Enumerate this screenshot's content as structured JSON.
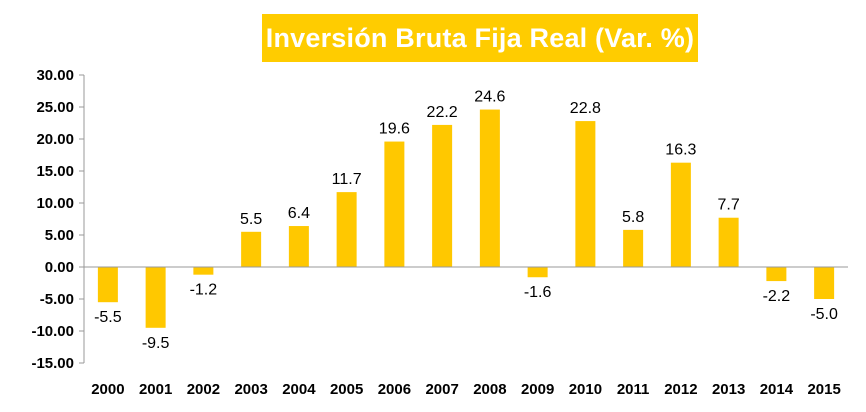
{
  "chart_data": {
    "type": "bar",
    "title": "Inversión Bruta Fija Real (Var. %)",
    "categories": [
      "2000",
      "2001",
      "2002",
      "2003",
      "2004",
      "2005",
      "2006",
      "2007",
      "2008",
      "2009",
      "2010",
      "2011",
      "2012",
      "2013",
      "2014",
      "2015"
    ],
    "values": [
      -5.5,
      -9.5,
      -1.2,
      5.5,
      6.4,
      11.7,
      19.6,
      22.2,
      24.6,
      -1.6,
      22.8,
      5.8,
      16.3,
      7.7,
      -2.2,
      -5.0
    ],
    "value_labels": [
      "-5.5",
      "-9.5",
      "-1.2",
      "5.5",
      "6.4",
      "11.7",
      "19.6",
      "22.2",
      "24.6",
      "-1.6",
      "22.8",
      "5.8",
      "16.3",
      "7.7",
      "-2.2",
      "-5.0"
    ],
    "y_ticks": [
      "30.00",
      "25.00",
      "20.00",
      "15.00",
      "10.00",
      "5.00",
      "0.00",
      "-5.00",
      "-10.00",
      "-15.00"
    ],
    "ylim": [
      -15,
      30
    ],
    "xlabel": "",
    "ylabel": "",
    "grid": false,
    "legend": "none",
    "colors": {
      "bar": "#FFC800",
      "title_bg": "#FFCC00",
      "title_text": "#FFFFFF",
      "axis": "#999999",
      "text": "#000000"
    }
  }
}
